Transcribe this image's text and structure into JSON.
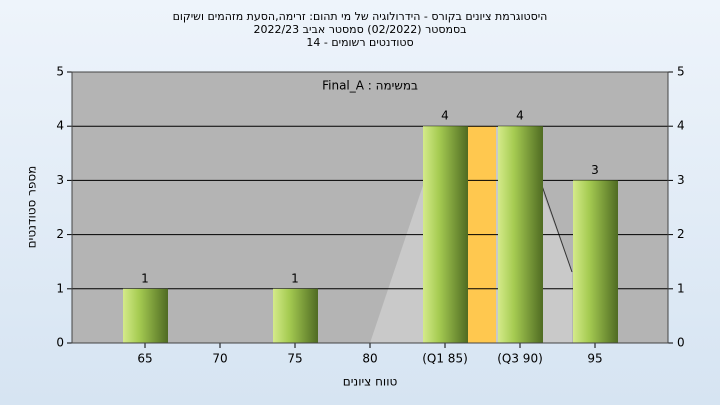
{
  "chart_data": {
    "type": "bar",
    "title": [
      "היסטוגרמת ציונים בקורס - הידרולוגיה של מי תהום: זרימה,הסעת מזהמים ושיקום",
      "בסמסטר  (02/2022)  סמסטר אביב 2022/23",
      "סטודנטים רשומים - 14"
    ],
    "annotation": "במשימה : Final_A",
    "x_label": "טווח ציונים",
    "y_label": "מספר סטודנטים",
    "categories": [
      "65",
      "70",
      "75",
      "80",
      "(Q1 85)",
      "(Q3 90)",
      "95"
    ],
    "values": [
      1,
      0,
      1,
      0,
      4,
      4,
      3
    ],
    "value_labels": [
      "1",
      null,
      "1",
      null,
      "4",
      "4",
      "3"
    ],
    "ylim": [
      0,
      5
    ],
    "yticks": [
      0,
      1,
      2,
      3,
      4,
      5
    ],
    "grid": true
  }
}
